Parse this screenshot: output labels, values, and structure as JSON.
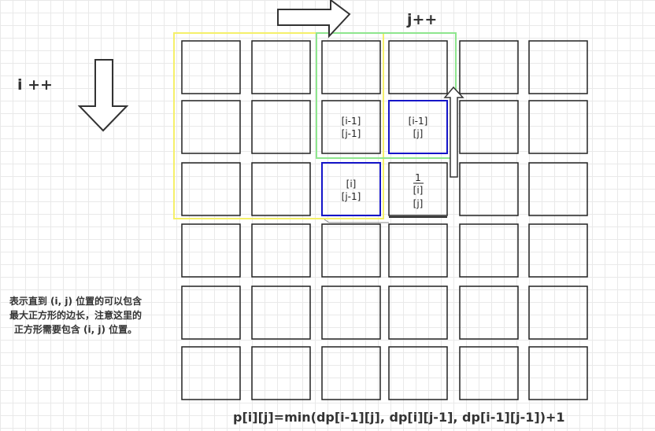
{
  "labels": {
    "i_increment": "i ++",
    "j_increment": "j++",
    "formula": "p[i][j]=min(dp[i-1][j], dp[i][j-1], dp[i-1][j-1])+1",
    "note_lines": [
      "表示直到 (i, j) 位置的可以包含",
      "最大正方形的边长，注意这里的",
      "正方形需要包含 (i, j) 位置。"
    ]
  },
  "cells": {
    "top_left": [
      "[i-1]",
      "[j-1]"
    ],
    "top": [
      "[i-1]",
      "[j]"
    ],
    "left": [
      "[i]",
      "[j-1]"
    ],
    "current": [
      "1",
      "[i]",
      "[j]"
    ]
  },
  "colors": {
    "yellow_region": "#f5f06a",
    "green_region": "#8ee68e",
    "blue_cell": "#1515c8",
    "cell_border": "#222222"
  }
}
